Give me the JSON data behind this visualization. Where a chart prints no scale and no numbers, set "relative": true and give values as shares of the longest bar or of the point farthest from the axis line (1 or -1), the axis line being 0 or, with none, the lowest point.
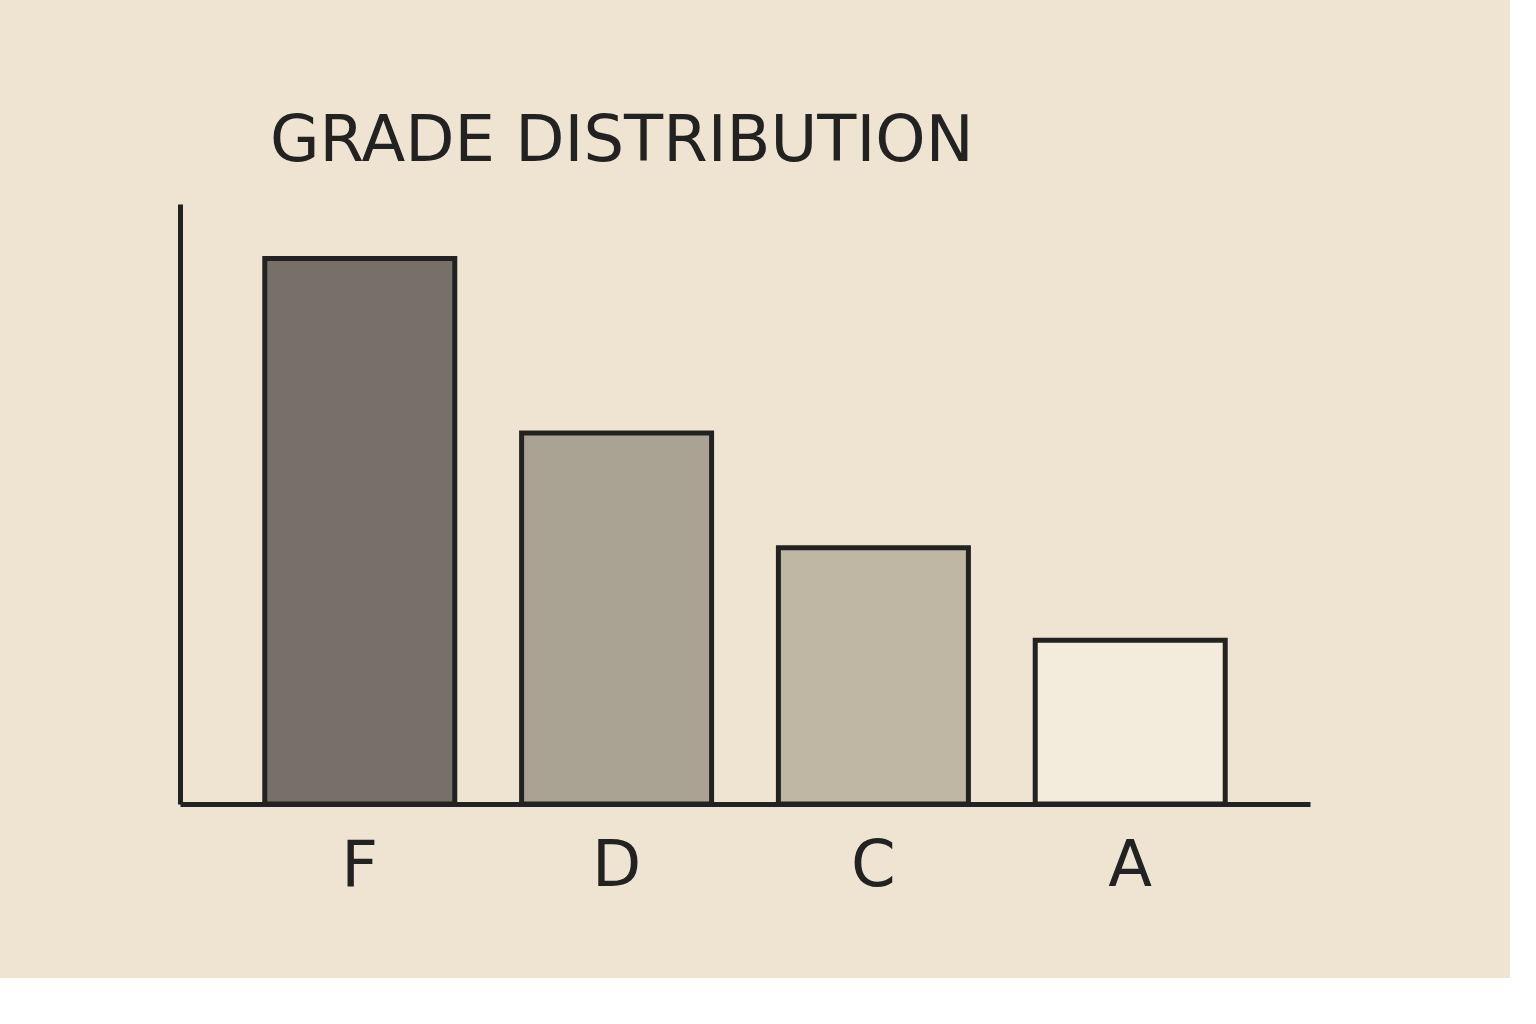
{
  "chart_data": {
    "type": "bar",
    "title": "GRADE DISTRIBUTION",
    "categories": [
      "F",
      "D",
      "C",
      "A"
    ],
    "values": [
      1,
      0.68,
      0.47,
      0.3
    ],
    "colors": [
      "#777068",
      "#aaa293",
      "#bfb6a4",
      "#f3ebdc"
    ],
    "relative": true
  }
}
